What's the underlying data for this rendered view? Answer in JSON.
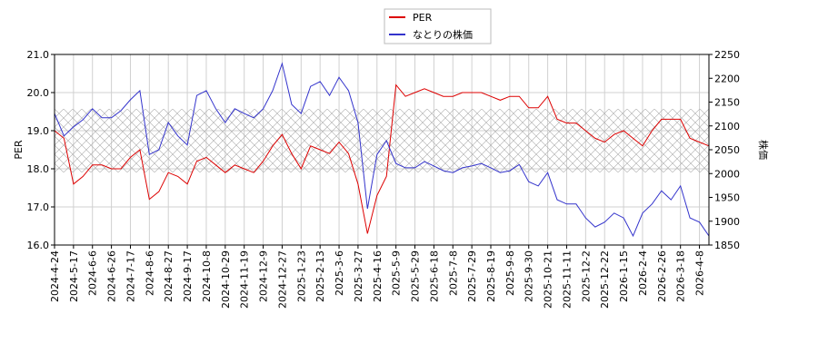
{
  "chart_data": {
    "type": "line",
    "x": [
      "2024-4-24",
      null,
      "2024-5-17",
      null,
      "2024-6-6",
      null,
      "2024-6-26",
      null,
      "2024-7-17",
      null,
      "2024-8-6",
      null,
      "2024-8-27",
      null,
      "2024-9-17",
      null,
      "2024-10-8",
      null,
      "2024-10-29",
      null,
      "2024-11-19",
      null,
      "2024-12-9",
      null,
      "2024-12-27",
      null,
      "2025-1-23",
      null,
      "2025-2-13",
      null,
      "2025-3-6",
      null,
      "2025-3-27",
      null,
      "2025-4-16",
      null,
      "2025-5-9",
      null,
      "2025-5-29",
      null,
      "2025-6-18",
      null,
      "2025-7-8",
      null,
      "2025-7-29",
      null,
      "2025-8-19",
      null,
      "2025-9-8",
      null,
      "2025-9-30",
      null,
      "2025-10-21",
      null,
      "2025-11-11",
      null,
      "2025-12-2",
      null,
      "2025-12-22",
      null,
      "2026-1-15",
      null,
      "2026-2-4",
      null,
      "2026-2-26",
      null,
      "2026-3-18",
      null,
      "2026-4-8",
      null
    ],
    "series": [
      {
        "name": "PER",
        "color": "#dd0000",
        "axis": "y",
        "values": [
          19.0,
          18.8,
          17.6,
          17.8,
          18.1,
          18.1,
          18.0,
          18.0,
          18.3,
          18.5,
          17.2,
          17.4,
          17.9,
          17.8,
          17.6,
          18.2,
          18.3,
          18.1,
          17.9,
          18.1,
          18.0,
          17.9,
          18.2,
          18.6,
          18.9,
          18.4,
          18.0,
          18.6,
          18.5,
          18.4,
          18.7,
          18.4,
          17.6,
          16.3,
          17.3,
          17.8,
          20.2,
          19.9,
          20.0,
          20.1,
          20.0,
          19.9,
          19.9,
          20.0,
          20.0,
          20.0,
          19.9,
          19.8,
          19.9,
          19.9,
          19.6,
          19.6,
          19.9,
          19.3,
          19.2,
          19.2,
          19.0,
          18.8,
          18.7,
          18.9,
          19.0,
          18.8,
          18.6,
          19.0,
          19.3,
          19.3,
          19.3,
          18.8,
          18.7,
          18.6
        ]
      },
      {
        "name": "なとりの株価",
        "color": "#3333cc",
        "axis": "y2",
        "values": [
          2126,
          2079,
          2098,
          2113,
          2136,
          2117,
          2117,
          2132,
          2155,
          2174,
          2040,
          2050,
          2107,
          2079,
          2060,
          2164,
          2174,
          2136,
          2107,
          2136,
          2126,
          2117,
          2136,
          2174,
          2231,
          2145,
          2126,
          2183,
          2193,
          2164,
          2202,
          2174,
          2107,
          1926,
          2040,
          2069,
          2021,
          2012,
          2012,
          2025,
          2016,
          2006,
          2002,
          2012,
          2016,
          2021,
          2012,
          2002,
          2006,
          2019,
          1983,
          1974,
          2002,
          1945,
          1936,
          1936,
          1907,
          1888,
          1898,
          1917,
          1907,
          1869,
          1917,
          1936,
          1964,
          1945,
          1974,
          1907,
          1898,
          1869
        ]
      }
    ],
    "ylabel": "PER",
    "y2label": "株価",
    "ylim": [
      16,
      21
    ],
    "yticks": [
      {
        "value": 16,
        "label": "16.0"
      },
      {
        "value": 17,
        "label": "17.0"
      },
      {
        "value": 18,
        "label": "18.0"
      },
      {
        "value": 19,
        "label": "19.0"
      },
      {
        "value": 20,
        "label": "20.0"
      },
      {
        "value": 21,
        "label": "21.0"
      }
    ],
    "y2lim": [
      1850,
      2250
    ],
    "y2ticks": [
      1850,
      1900,
      1950,
      2000,
      2050,
      2100,
      2150,
      2200,
      2250
    ],
    "grid": true,
    "legend": "top"
  }
}
